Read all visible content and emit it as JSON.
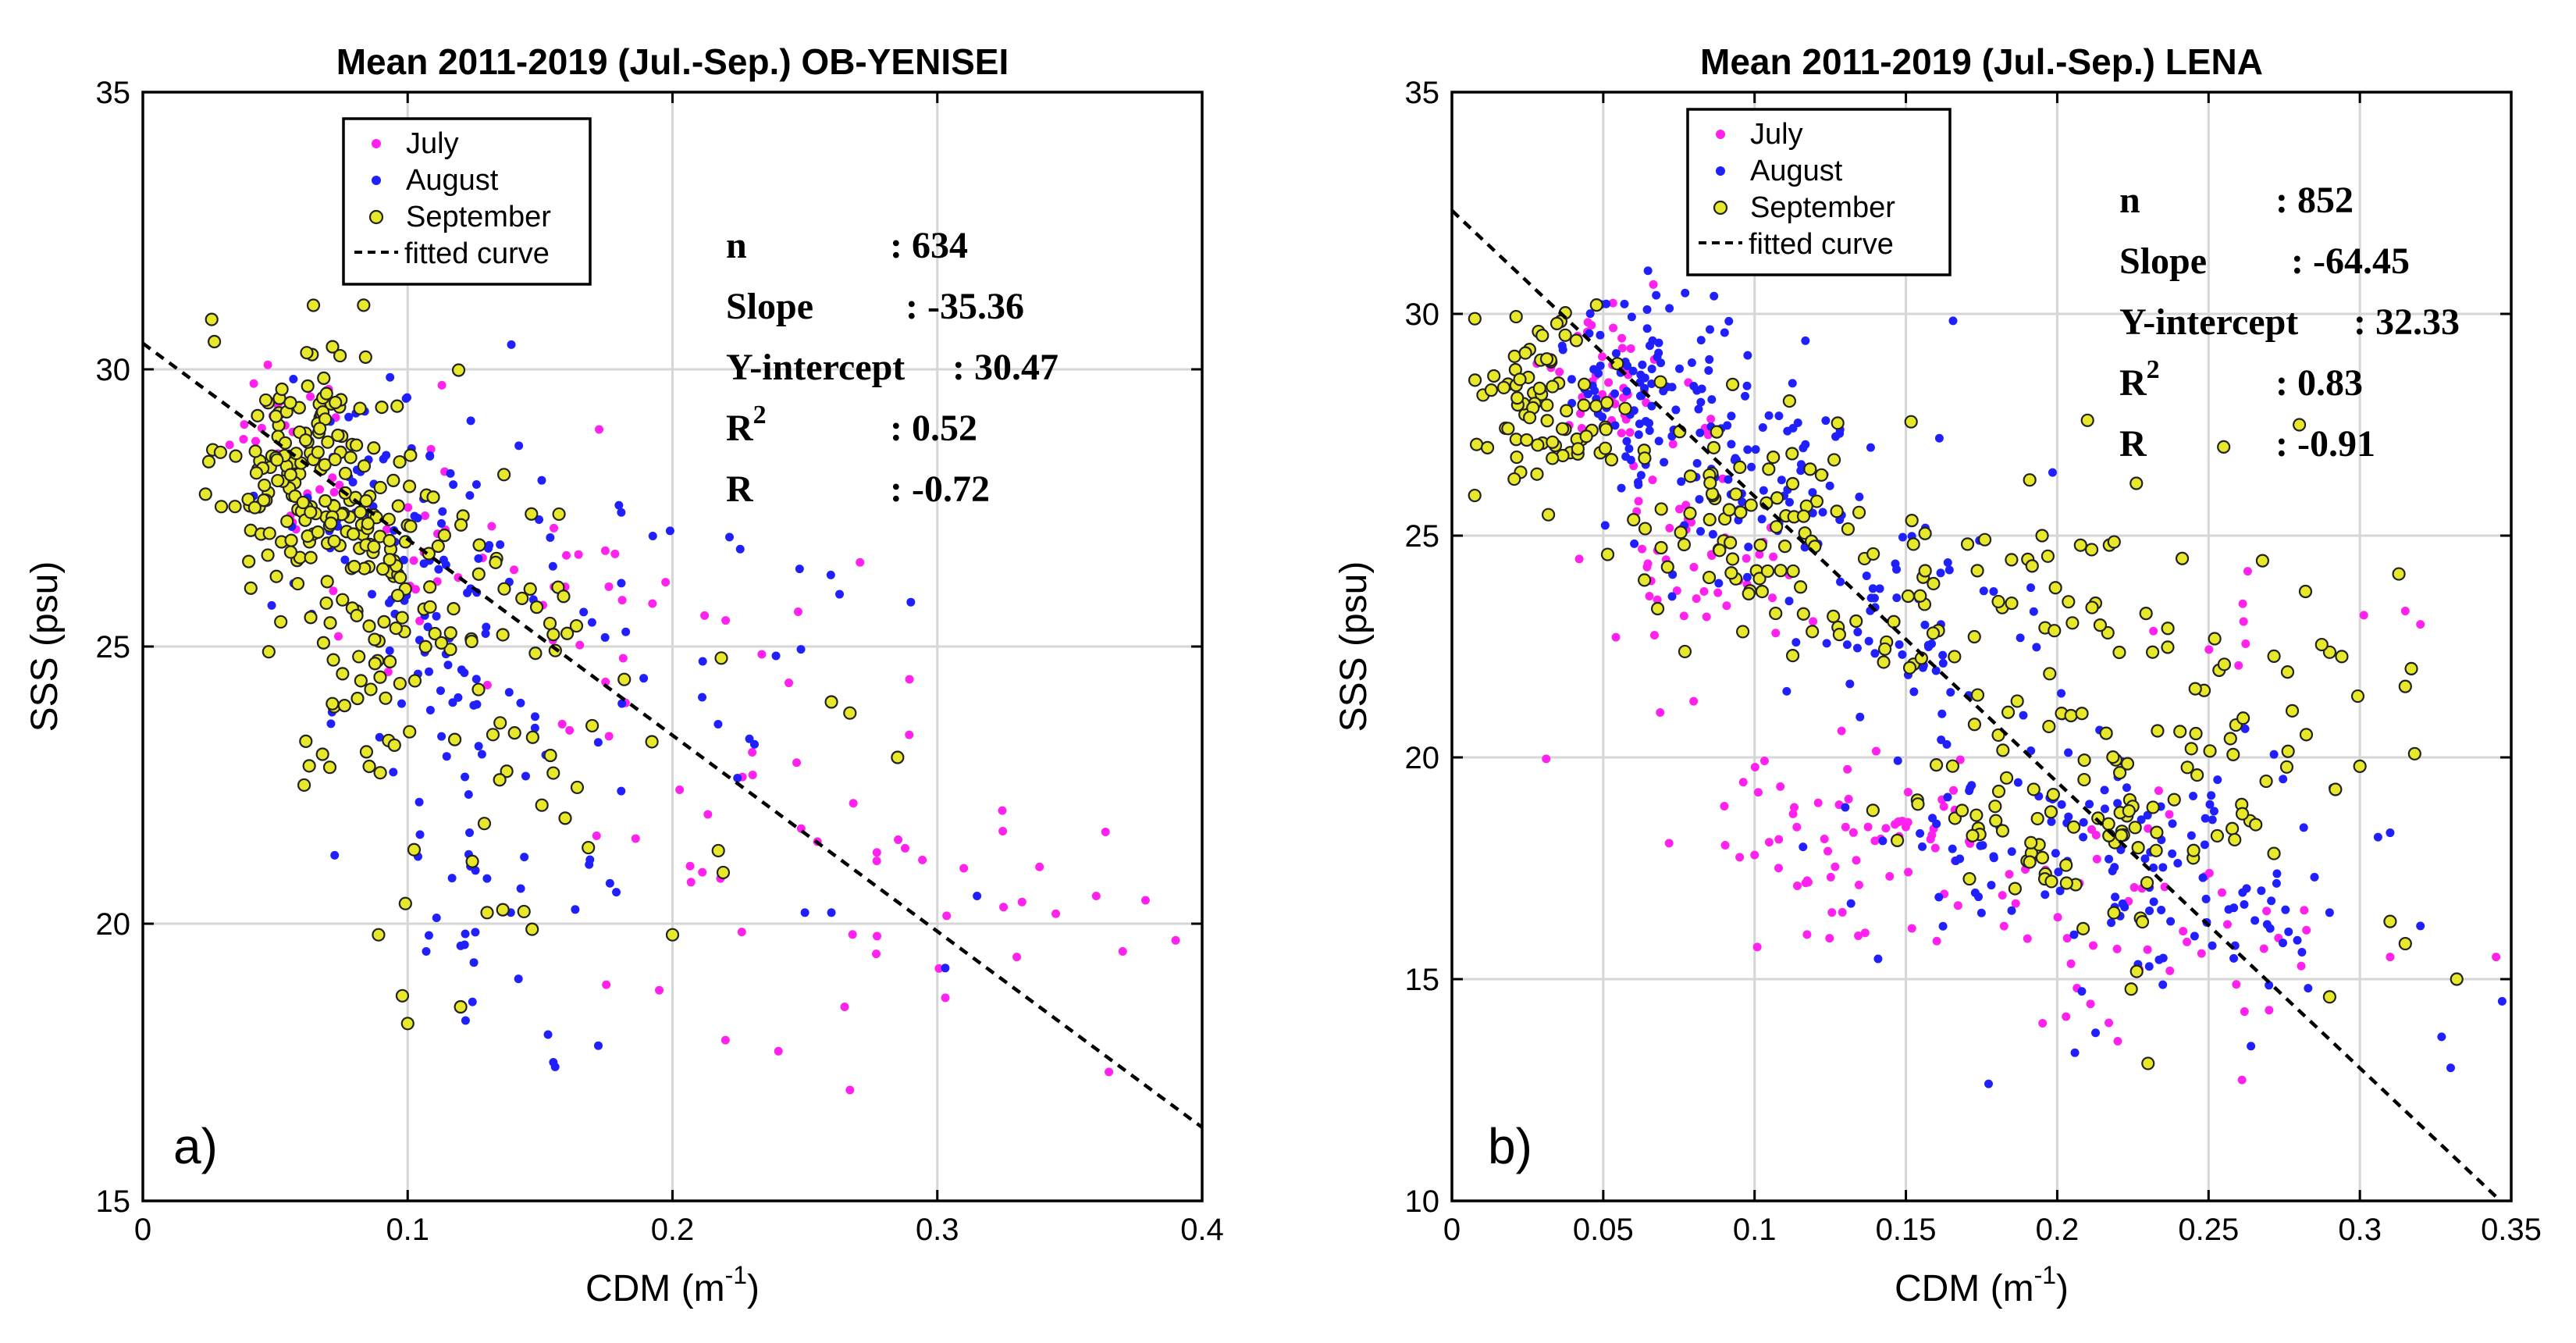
{
  "chart_data": [
    {
      "type": "scatter",
      "title": "Mean 2011-2019 (Jul.-Sep.) OB-YENISEI",
      "xlabel": "CDM (m",
      "xlabel_sup": "-1",
      "xlabel_close": ")",
      "ylabel": "SSS (psu)",
      "xlim": [
        0,
        0.4
      ],
      "ylim": [
        15,
        35
      ],
      "xticks": [
        0,
        0.1,
        0.2,
        0.3,
        0.4
      ],
      "xtick_labels": [
        "0",
        "0.1",
        "0.2",
        "0.3",
        "0.4"
      ],
      "yticks": [
        15,
        20,
        25,
        30,
        35
      ],
      "ytick_labels": [
        "15",
        "20",
        "25",
        "30",
        "35"
      ],
      "grid": true,
      "legend_position": "top-left",
      "panel_label": "a)",
      "legend": [
        "July",
        "August",
        "September",
        "fitted curve"
      ],
      "stats": {
        "n_label": "n",
        "n_value": ": 634",
        "slope_label": "Slope",
        "slope_value": ": -35.36",
        "yint_label": "Y-intercept",
        "yint_value": ": 30.47",
        "r2_label": "R",
        "r2_sup": "2",
        "r2_value": ": 0.52",
        "r_label": "R",
        "r_value": ": -0.72"
      },
      "fit": {
        "slope": -35.36,
        "intercept": 30.47
      },
      "series": [
        {
          "name": "July",
          "color": "#ff22ee",
          "cloud": [
            {
              "center": [
                0.06,
                28.5
              ],
              "spread": [
                0.012,
                1.0
              ],
              "n": 35
            },
            {
              "center": [
                0.1,
                27.0
              ],
              "spread": [
                0.015,
                1.3
              ],
              "n": 20
            },
            {
              "center": [
                0.16,
                25.5
              ],
              "spread": [
                0.02,
                1.5
              ],
              "n": 25
            },
            {
              "center": [
                0.22,
                22.5
              ],
              "spread": [
                0.03,
                1.5
              ],
              "n": 22
            },
            {
              "center": [
                0.3,
                20.5
              ],
              "spread": [
                0.045,
                1.3
              ],
              "n": 20
            }
          ],
          "points": [
            [
              0.39,
              19.7
            ],
            [
              0.37,
              19.5
            ],
            [
              0.36,
              20.5
            ],
            [
              0.33,
              19.4
            ],
            [
              0.325,
              20.3
            ],
            [
              0.31,
              21.0
            ],
            [
              0.267,
              17.0
            ],
            [
              0.24,
              17.7
            ],
            [
              0.22,
              17.9
            ],
            [
              0.265,
              18.5
            ],
            [
              0.195,
              18.8
            ],
            [
              0.175,
              18.9
            ]
          ]
        },
        {
          "name": "August",
          "color": "#2020ff",
          "cloud": [
            {
              "center": [
                0.08,
                28.0
              ],
              "spread": [
                0.02,
                1.0
              ],
              "n": 45
            },
            {
              "center": [
                0.11,
                26.0
              ],
              "spread": [
                0.02,
                1.3
              ],
              "n": 40
            },
            {
              "center": [
                0.14,
                24.5
              ],
              "spread": [
                0.025,
                2.0
              ],
              "n": 45
            },
            {
              "center": [
                0.13,
                21.5
              ],
              "spread": [
                0.03,
                1.5
              ],
              "n": 28
            },
            {
              "center": [
                0.2,
                24.0
              ],
              "spread": [
                0.03,
                1.8
              ],
              "n": 18
            }
          ],
          "points": [
            [
              0.155,
              17.5
            ],
            [
              0.153,
              18.0
            ],
            [
              0.172,
              17.8
            ],
            [
              0.125,
              19.3
            ],
            [
              0.12,
              19.6
            ],
            [
              0.107,
              19.5
            ],
            [
              0.29,
              25.8
            ],
            [
              0.248,
              26.4
            ],
            [
              0.25,
              20.2
            ],
            [
              0.26,
              20.2
            ],
            [
              0.303,
              19.2
            ],
            [
              0.315,
              20.5
            ]
          ]
        },
        {
          "name": "September",
          "color": "#e8e82a",
          "edge": "#222222",
          "cloud": [
            {
              "center": [
                0.06,
                28.2
              ],
              "spread": [
                0.014,
                1.1
              ],
              "n": 130
            },
            {
              "center": [
                0.085,
                26.8
              ],
              "spread": [
                0.018,
                1.3
              ],
              "n": 80
            },
            {
              "center": [
                0.12,
                25.5
              ],
              "spread": [
                0.025,
                1.5
              ],
              "n": 45
            },
            {
              "center": [
                0.07,
                23.5
              ],
              "spread": [
                0.014,
                0.8
              ],
              "n": 15
            },
            {
              "center": [
                0.16,
                22.5
              ],
              "spread": [
                0.03,
                1.5
              ],
              "n": 25
            }
          ],
          "points": [
            [
              0.026,
              30.9
            ],
            [
              0.027,
              30.5
            ],
            [
              0.1,
              18.2
            ],
            [
              0.098,
              18.7
            ],
            [
              0.12,
              18.5
            ],
            [
              0.26,
              24.0
            ],
            [
              0.267,
              23.8
            ],
            [
              0.285,
              23.0
            ],
            [
              0.089,
              19.8
            ],
            [
              0.2,
              19.8
            ],
            [
              0.147,
              19.9
            ],
            [
              0.13,
              20.2
            ]
          ]
        }
      ]
    },
    {
      "type": "scatter",
      "title": "Mean 2011-2019 (Jul.-Sep.) LENA",
      "xlabel": "CDM (m",
      "xlabel_sup": "-1",
      "xlabel_close": ")",
      "ylabel": "SSS (psu)",
      "xlim": [
        0,
        0.35
      ],
      "ylim": [
        10,
        35
      ],
      "xticks": [
        0,
        0.05,
        0.1,
        0.15,
        0.2,
        0.25,
        0.3,
        0.35
      ],
      "xtick_labels": [
        "0",
        "0.05",
        "0.1",
        "0.15",
        "0.2",
        "0.25",
        "0.3",
        "0.35"
      ],
      "yticks": [
        10,
        15,
        20,
        25,
        30,
        35
      ],
      "ytick_labels": [
        "10",
        "15",
        "20",
        "25",
        "30",
        "35"
      ],
      "grid": true,
      "legend_position": "top-left",
      "panel_label": "b)",
      "legend": [
        "July",
        "August",
        "September",
        "fitted curve"
      ],
      "stats": {
        "n_label": "n",
        "n_value": ": 852",
        "slope_label": "Slope",
        "slope_value": ": -64.45",
        "yint_label": "Y-intercept",
        "yint_value": ": 32.33",
        "r2_label": "R",
        "r2_sup": "2",
        "r2_value": ": 0.83",
        "r_label": "R",
        "r_value": ": -0.91"
      },
      "fit": {
        "slope": -64.45,
        "intercept": 32.33
      },
      "series": [
        {
          "name": "July",
          "color": "#ff22ee",
          "cloud": [
            {
              "center": [
                0.05,
                28.5
              ],
              "spread": [
                0.01,
                0.9
              ],
              "n": 40
            },
            {
              "center": [
                0.08,
                24.0
              ],
              "spread": [
                0.015,
                1.5
              ],
              "n": 55
            },
            {
              "center": [
                0.13,
                18.0
              ],
              "spread": [
                0.025,
                1.0
              ],
              "n": 70
            },
            {
              "center": [
                0.22,
                16.0
              ],
              "spread": [
                0.03,
                1.3
              ],
              "n": 50
            },
            {
              "center": [
                0.26,
                23.0
              ],
              "spread": [
                0.015,
                0.8
              ],
              "n": 8
            }
          ],
          "points": [
            [
              0.315,
              23.3
            ],
            [
              0.32,
              23.0
            ],
            [
              0.31,
              15.5
            ],
            [
              0.345,
              15.5
            ],
            [
              0.27,
              14.3
            ],
            [
              0.22,
              13.6
            ],
            [
              0.09,
              18.9
            ],
            [
              0.1,
              17.8
            ]
          ]
        },
        {
          "name": "August",
          "color": "#2020ff",
          "cloud": [
            {
              "center": [
                0.06,
                28.5
              ],
              "spread": [
                0.012,
                0.9
              ],
              "n": 80
            },
            {
              "center": [
                0.1,
                26.5
              ],
              "spread": [
                0.02,
                1.2
              ],
              "n": 90
            },
            {
              "center": [
                0.15,
                23.0
              ],
              "spread": [
                0.025,
                1.5
              ],
              "n": 60
            },
            {
              "center": [
                0.2,
                18.5
              ],
              "spread": [
                0.035,
                1.3
              ],
              "n": 100
            },
            {
              "center": [
                0.25,
                16.0
              ],
              "spread": [
                0.03,
                1.2
              ],
              "n": 40
            }
          ],
          "points": [
            [
              0.347,
              14.5
            ],
            [
              0.33,
              13.0
            ],
            [
              0.327,
              13.7
            ],
            [
              0.31,
              18.3
            ],
            [
              0.32,
              16.2
            ],
            [
              0.29,
              16.5
            ],
            [
              0.285,
              17.3
            ]
          ]
        },
        {
          "name": "September",
          "color": "#e8e82a",
          "edge": "#222222",
          "cloud": [
            {
              "center": [
                0.03,
                28.0
              ],
              "spread": [
                0.012,
                1.0
              ],
              "n": 80
            },
            {
              "center": [
                0.1,
                25.5
              ],
              "spread": [
                0.025,
                1.3
              ],
              "n": 80
            },
            {
              "center": [
                0.17,
                23.0
              ],
              "spread": [
                0.03,
                1.5
              ],
              "n": 60
            },
            {
              "center": [
                0.21,
                18.5
              ],
              "spread": [
                0.03,
                1.5
              ],
              "n": 80
            },
            {
              "center": [
                0.26,
                21.0
              ],
              "spread": [
                0.03,
                2.0
              ],
              "n": 40
            }
          ],
          "points": [
            [
              0.31,
              16.3
            ],
            [
              0.315,
              15.8
            ],
            [
              0.3,
              19.8
            ],
            [
              0.315,
              21.6
            ],
            [
              0.317,
              22.0
            ],
            [
              0.332,
              15.0
            ],
            [
              0.29,
              14.6
            ],
            [
              0.23,
              13.1
            ],
            [
              0.195,
              25.0
            ],
            [
              0.21,
              27.6
            ],
            [
              0.255,
              27.0
            ],
            [
              0.28,
              27.5
            ]
          ]
        }
      ]
    }
  ]
}
